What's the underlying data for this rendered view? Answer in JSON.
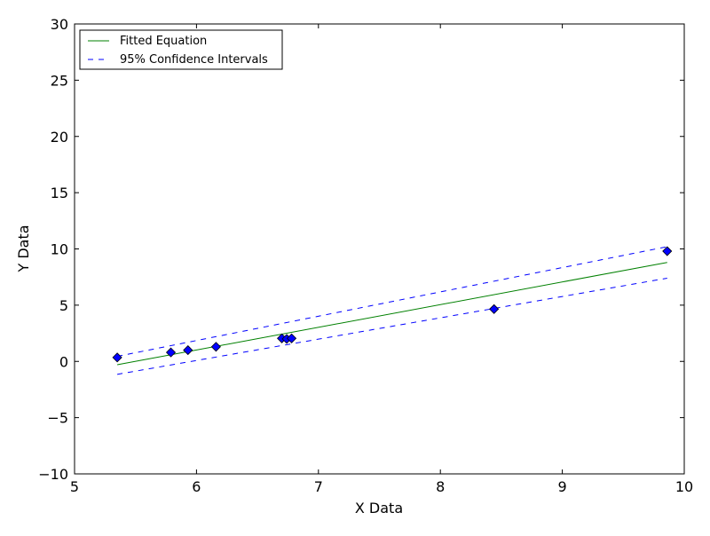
{
  "chart_data": {
    "type": "scatter",
    "title": "",
    "xlabel": "X Data",
    "ylabel": "Y Data",
    "xlim": [
      5,
      10
    ],
    "ylim": [
      -10,
      30
    ],
    "x_ticks": [
      "5",
      "6",
      "7",
      "8",
      "9",
      "10"
    ],
    "y_ticks": [
      "−10",
      "−5",
      "0",
      "5",
      "10",
      "15",
      "20",
      "25",
      "30"
    ],
    "grid": false,
    "legend_placement": "top-left",
    "points": [
      {
        "x": 5.35,
        "y": 0.35
      },
      {
        "x": 5.79,
        "y": 0.8
      },
      {
        "x": 5.93,
        "y": 1.0
      },
      {
        "x": 6.16,
        "y": 1.3
      },
      {
        "x": 6.7,
        "y": 2.05
      },
      {
        "x": 6.74,
        "y": 2.0
      },
      {
        "x": 6.78,
        "y": 2.05
      },
      {
        "x": 8.44,
        "y": 4.65
      },
      {
        "x": 9.86,
        "y": 9.8
      }
    ],
    "series": [
      {
        "name": "Fitted Equation",
        "style": "solid",
        "color": "#008000",
        "x": [
          5.35,
          9.86
        ],
        "y": [
          -0.3,
          8.8
        ]
      },
      {
        "name": "95% Confidence Intervals",
        "style": "dashed",
        "color": "#0000ff",
        "x": [
          5.35,
          9.86
        ],
        "y": [
          0.45,
          10.2
        ]
      },
      {
        "name": "",
        "style": "dashed",
        "color": "#0000ff",
        "x": [
          5.35,
          9.86
        ],
        "y": [
          -1.15,
          7.4
        ]
      }
    ],
    "marker_color": "#0000ff",
    "legend": [
      "Fitted Equation",
      "95% Confidence Intervals"
    ]
  }
}
